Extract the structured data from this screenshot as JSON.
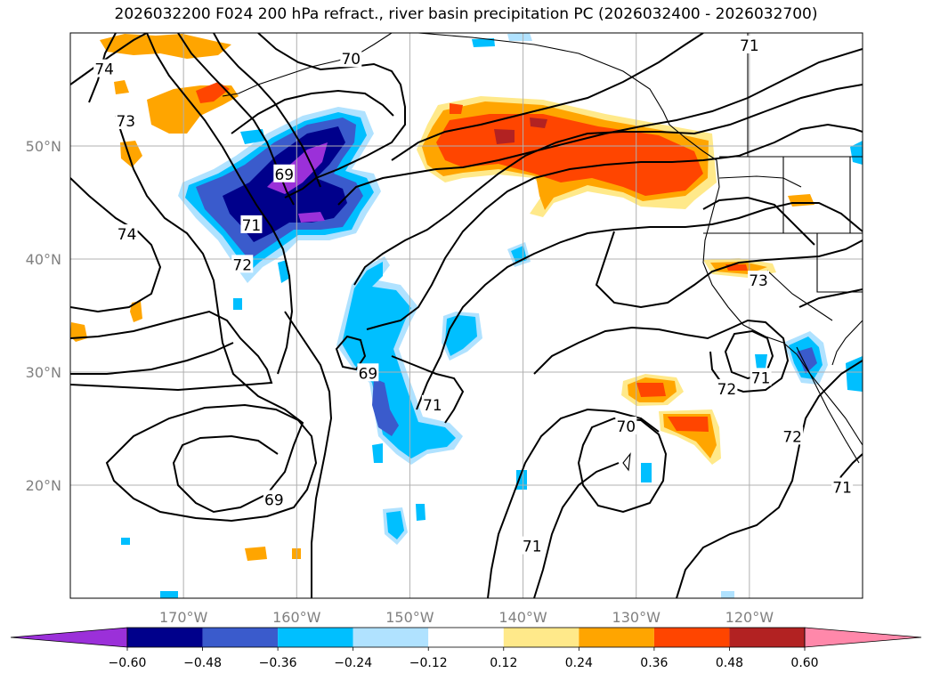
{
  "title": "2026032200 F024 200 hPa refract., river basin precipitation PC (2026032400 - 2026032700)",
  "map": {
    "lat_labels": [
      {
        "text": "50°N",
        "lat": 50
      },
      {
        "text": "40°N",
        "lat": 40
      },
      {
        "text": "30°N",
        "lat": 30
      },
      {
        "text": "20°N",
        "lat": 20
      }
    ],
    "lon_labels": [
      {
        "text": "170°W",
        "lon": -170
      },
      {
        "text": "160°W",
        "lon": -160
      },
      {
        "text": "150°W",
        "lon": -150
      },
      {
        "text": "140°W",
        "lon": -140
      },
      {
        "text": "130°W",
        "lon": -130
      },
      {
        "text": "120°W",
        "lon": -120
      }
    ],
    "contour_labels": [
      {
        "text": "74",
        "lon": -177.0,
        "lat": 56.8
      },
      {
        "text": "70",
        "lon": -155.2,
        "lat": 57.7
      },
      {
        "text": "71",
        "lon": -120.0,
        "lat": 58.9
      },
      {
        "text": "73",
        "lon": -175.1,
        "lat": 52.2
      },
      {
        "text": "69",
        "lon": -161.1,
        "lat": 47.5
      },
      {
        "text": "71",
        "lon": -164.0,
        "lat": 43.0
      },
      {
        "text": "74",
        "lon": -175.0,
        "lat": 42.2
      },
      {
        "text": "72",
        "lon": -164.8,
        "lat": 39.5
      },
      {
        "text": "73",
        "lon": -119.2,
        "lat": 38.1
      },
      {
        "text": "69",
        "lon": -153.7,
        "lat": 29.9
      },
      {
        "text": "71",
        "lon": -148.0,
        "lat": 27.1
      },
      {
        "text": "72",
        "lon": -122.0,
        "lat": 28.5
      },
      {
        "text": "71",
        "lon": -119.0,
        "lat": 29.5
      },
      {
        "text": "70",
        "lon": -130.9,
        "lat": 25.2
      },
      {
        "text": "72",
        "lon": -116.2,
        "lat": 24.3
      },
      {
        "text": "69",
        "lon": -162.0,
        "lat": 18.7
      },
      {
        "text": "71",
        "lon": -139.2,
        "lat": 14.6
      },
      {
        "text": "71",
        "lon": -111.8,
        "lat": 19.8
      }
    ]
  },
  "colorbar": {
    "colors": [
      "#9b30d9",
      "#00008b",
      "#3a5bcc",
      "#00bfff",
      "#b0e2ff",
      "#ffffff",
      "#ffe98a",
      "#ffa500",
      "#ff4500",
      "#b22222",
      "#ff88aa"
    ],
    "tick_labels": [
      "−0.60",
      "−0.48",
      "−0.36",
      "−0.24",
      "−0.12",
      "0.12",
      "0.24",
      "0.36",
      "0.48",
      "0.60"
    ]
  }
}
